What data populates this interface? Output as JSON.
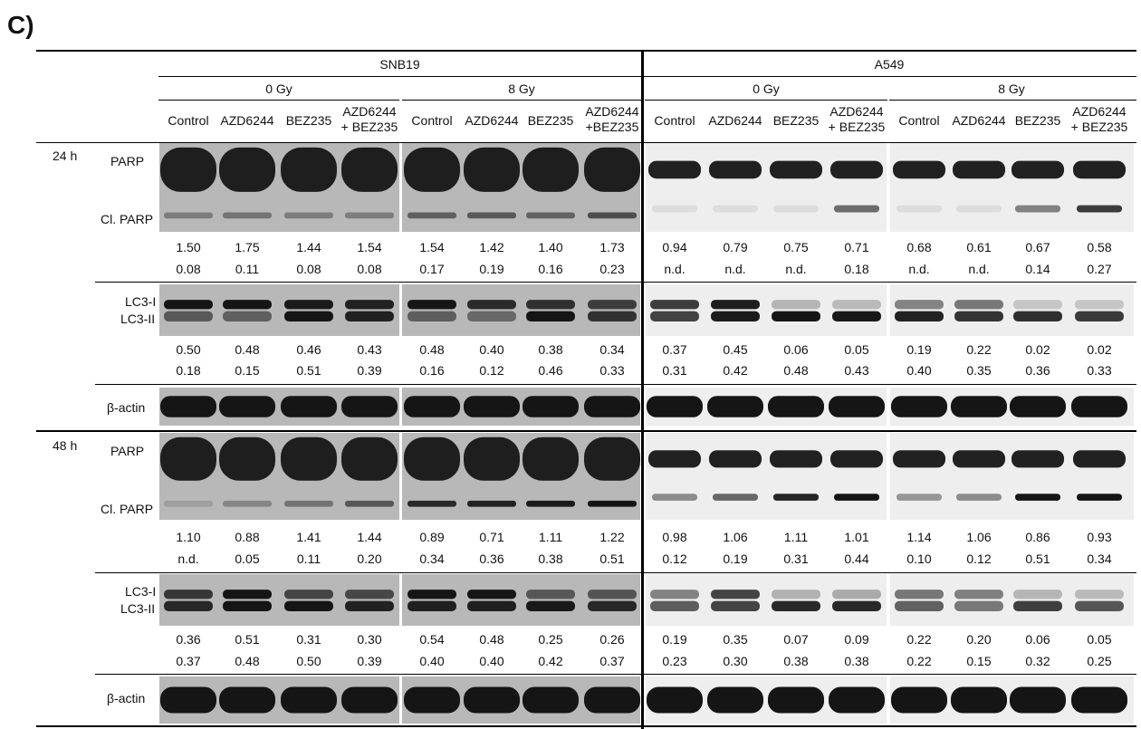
{
  "panel_label": "C)",
  "cell_lines": [
    "SNB19",
    "A549"
  ],
  "doses": [
    "0 Gy",
    "8 Gy"
  ],
  "treatments": [
    "Control",
    "AZD6244",
    "BEZ235",
    "AZD6244\n+ BEZ235"
  ],
  "treatments_snb19_8gy_last": "AZD6244\n+BEZ235",
  "times": [
    "24 h",
    "48 h"
  ],
  "band_labels": {
    "parp": "PARP",
    "cl_parp": "Cl. PARP",
    "lc3_i": "LC3-I",
    "lc3_ii": "LC3-II",
    "actin": "β-actin"
  },
  "values": {
    "h24": {
      "parp_row1": [
        "1.50",
        "1.75",
        "1.44",
        "1.54",
        "1.54",
        "1.42",
        "1.40",
        "1.73",
        "0.94",
        "0.79",
        "0.75",
        "0.71",
        "0.68",
        "0.61",
        "0.67",
        "0.58"
      ],
      "parp_row2": [
        "0.08",
        "0.11",
        "0.08",
        "0.08",
        "0.17",
        "0.19",
        "0.16",
        "0.23",
        "n.d.",
        "n.d.",
        "n.d.",
        "0.18",
        "n.d.",
        "n.d.",
        "0.14",
        "0.27"
      ],
      "lc3_row1": [
        "0.50",
        "0.48",
        "0.46",
        "0.43",
        "0.48",
        "0.40",
        "0.38",
        "0.34",
        "0.37",
        "0.45",
        "0.06",
        "0.05",
        "0.19",
        "0.22",
        "0.02",
        "0.02"
      ],
      "lc3_row2": [
        "0.18",
        "0.15",
        "0.51",
        "0.39",
        "0.16",
        "0.12",
        "0.46",
        "0.33",
        "0.31",
        "0.42",
        "0.48",
        "0.43",
        "0.40",
        "0.35",
        "0.36",
        "0.33"
      ]
    },
    "h48": {
      "parp_row1": [
        "1.10",
        "0.88",
        "1.41",
        "1.44",
        "0.89",
        "0.71",
        "1.11",
        "1.22",
        "0.98",
        "1.06",
        "1.11",
        "1.01",
        "1.14",
        "1.06",
        "0.86",
        "0.93"
      ],
      "parp_row2": [
        "n.d.",
        "0.05",
        "0.11",
        "0.20",
        "0.34",
        "0.36",
        "0.38",
        "0.51",
        "0.12",
        "0.19",
        "0.31",
        "0.44",
        "0.10",
        "0.12",
        "0.51",
        "0.34"
      ],
      "lc3_row1": [
        "0.36",
        "0.51",
        "0.31",
        "0.30",
        "0.54",
        "0.48",
        "0.25",
        "0.26",
        "0.19",
        "0.35",
        "0.07",
        "0.09",
        "0.22",
        "0.20",
        "0.06",
        "0.05"
      ],
      "lc3_row2": [
        "0.37",
        "0.48",
        "0.50",
        "0.39",
        "0.40",
        "0.40",
        "0.42",
        "0.37",
        "0.23",
        "0.30",
        "0.38",
        "0.38",
        "0.22",
        "0.15",
        "0.32",
        "0.25"
      ]
    }
  },
  "blot_colors": {
    "snb19_bg": "#b8b8b8",
    "a549_bg": "#eeeeee",
    "band": "#151515"
  }
}
